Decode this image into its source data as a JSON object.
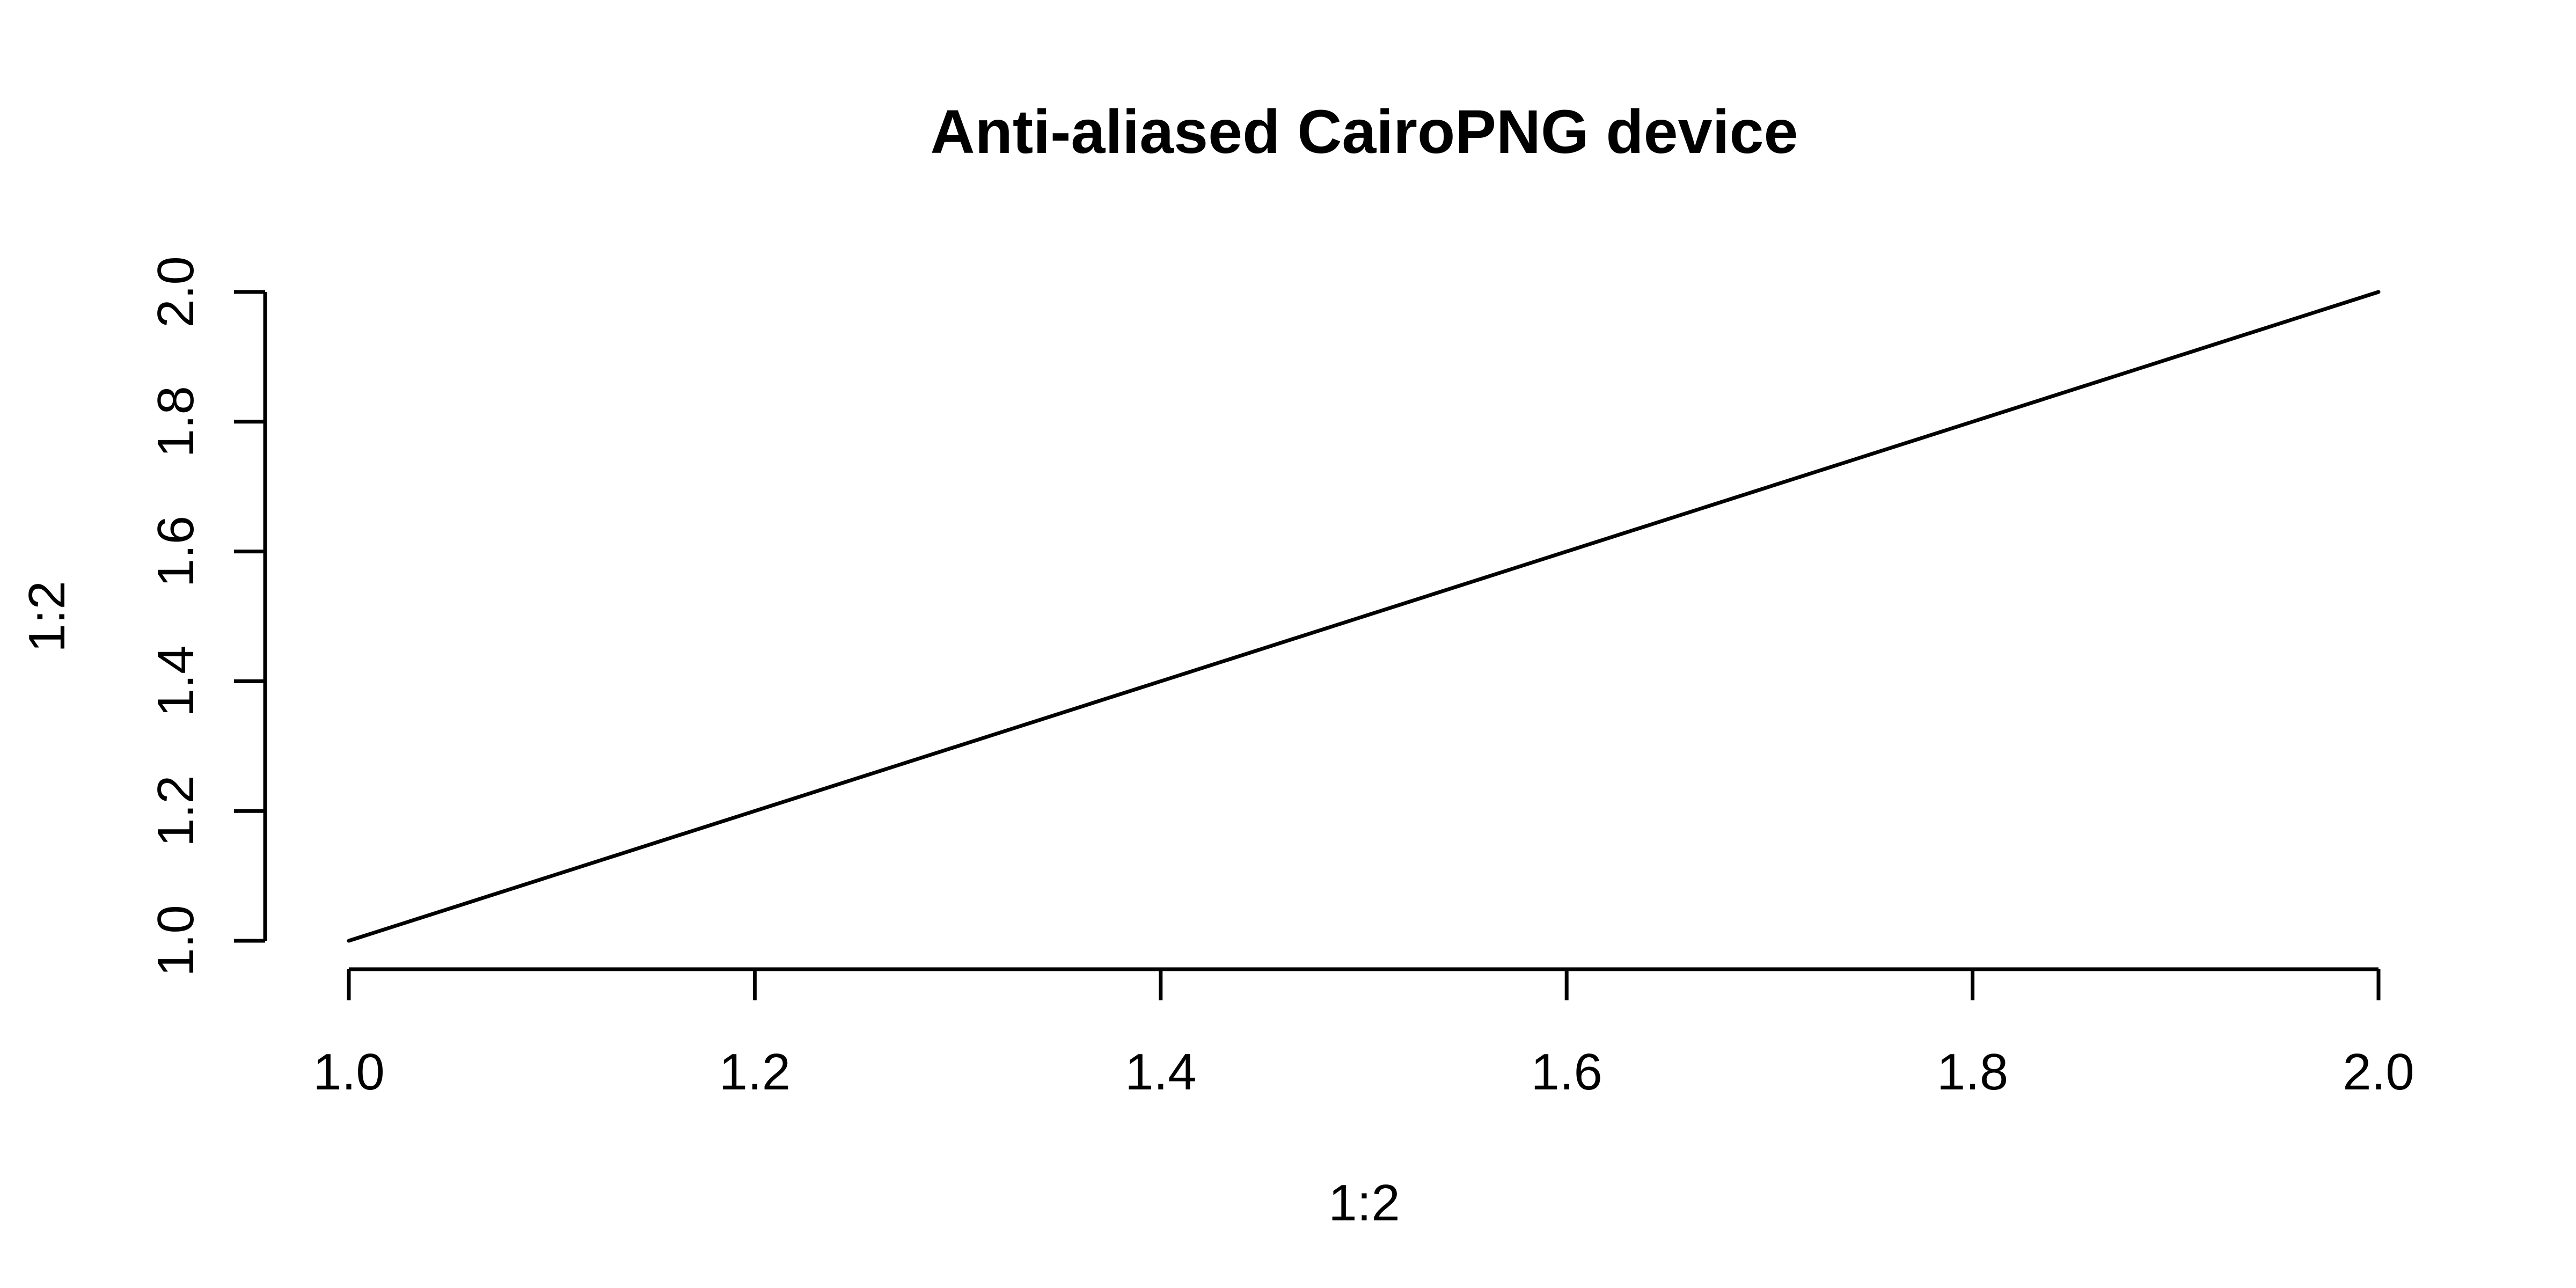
{
  "chart_data": {
    "type": "line",
    "title": "Anti-aliased CairoPNG device",
    "xlabel": "1:2",
    "ylabel": "1:2",
    "x": [
      1,
      2
    ],
    "series": [
      {
        "values": [
          1,
          2
        ],
        "color": "#000000"
      }
    ],
    "xlim": [
      1.0,
      2.0
    ],
    "ylim": [
      1.0,
      2.0
    ],
    "xticks": [
      "1.0",
      "1.2",
      "1.4",
      "1.6",
      "1.8",
      "2.0"
    ],
    "yticks": [
      "1.0",
      "1.2",
      "1.4",
      "1.6",
      "1.8",
      "2.0"
    ],
    "grid": false,
    "legend": "none"
  }
}
